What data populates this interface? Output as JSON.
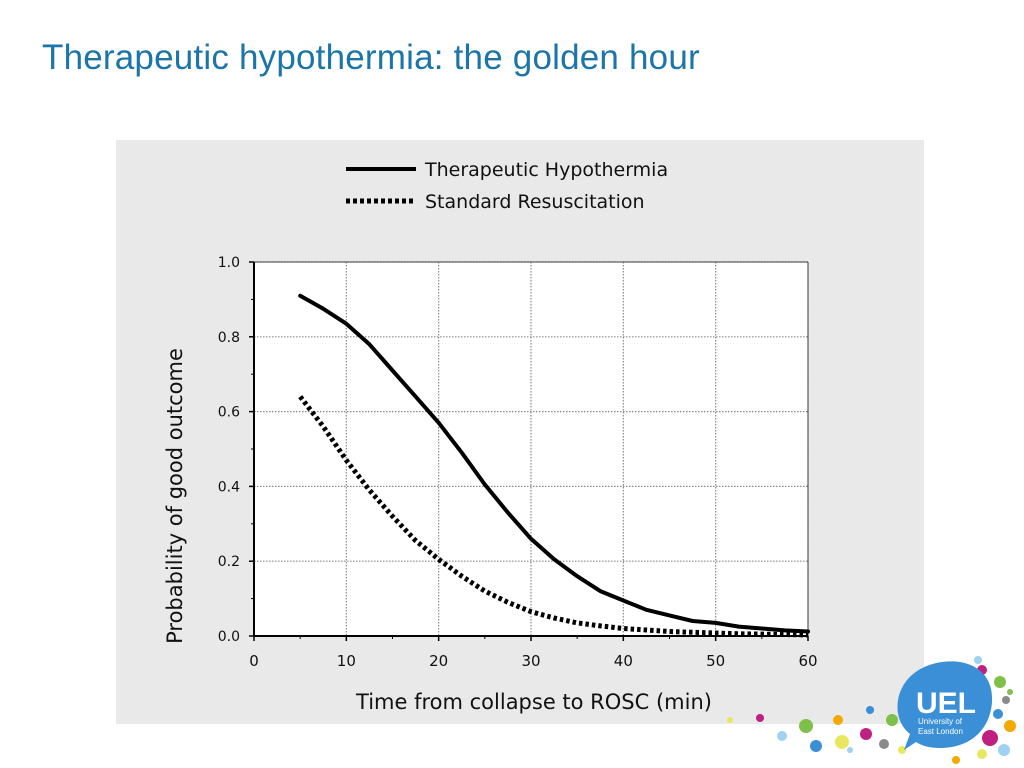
{
  "slide": {
    "title": "Therapeutic hypothermia: the golden hour"
  },
  "chart_data": {
    "type": "line",
    "title": "",
    "xlabel": "Time from collapse to ROSC (min)",
    "ylabel": "Probability of good outcome",
    "xlim": [
      0,
      60
    ],
    "ylim": [
      0,
      1.0
    ],
    "xticks": [
      "0",
      "10",
      "20",
      "30",
      "40",
      "50",
      "60"
    ],
    "yticks": [
      "0.0",
      "0.2",
      "0.4",
      "0.6",
      "0.8",
      "1.0"
    ],
    "grid": true,
    "legend_position": "top",
    "series": [
      {
        "name": "Therapeutic Hypothermia",
        "style": "solid",
        "color": "#000000",
        "x": [
          5,
          7.5,
          10,
          12.5,
          15,
          17.5,
          20,
          22.5,
          25,
          27.5,
          30,
          32.5,
          35,
          37.5,
          40,
          42.5,
          45,
          47.5,
          50,
          52.5,
          55,
          57.5,
          60
        ],
        "y": [
          0.91,
          0.875,
          0.835,
          0.78,
          0.71,
          0.64,
          0.57,
          0.49,
          0.405,
          0.33,
          0.26,
          0.205,
          0.16,
          0.12,
          0.095,
          0.07,
          0.055,
          0.04,
          0.035,
          0.025,
          0.02,
          0.015,
          0.012
        ]
      },
      {
        "name": "Standard Resuscitation",
        "style": "dotted",
        "color": "#000000",
        "x": [
          5,
          7.5,
          10,
          12.5,
          15,
          17.5,
          20,
          22.5,
          25,
          27.5,
          30,
          32.5,
          35,
          37.5,
          40,
          42.5,
          45,
          47.5,
          50,
          52.5,
          55,
          57.5,
          60
        ],
        "y": [
          0.64,
          0.56,
          0.47,
          0.39,
          0.32,
          0.255,
          0.205,
          0.16,
          0.12,
          0.09,
          0.065,
          0.048,
          0.035,
          0.027,
          0.02,
          0.016,
          0.012,
          0.01,
          0.008,
          0.006,
          0.005,
          0.004,
          0.003
        ]
      }
    ]
  },
  "logo": {
    "text_main": "UEL",
    "text_line1": "University of",
    "text_line2": "East London",
    "accent": "#3A8FD6",
    "dot_colors": [
      "#C0207F",
      "#7FC04A",
      "#3A8FD6",
      "#F2A900",
      "#E8E860",
      "#8A8A8A",
      "#9DD2F0"
    ]
  },
  "colors": {
    "title": "#1B75A8",
    "panel_bg": "#E9E9E9",
    "grid": "#8A8A8A"
  }
}
